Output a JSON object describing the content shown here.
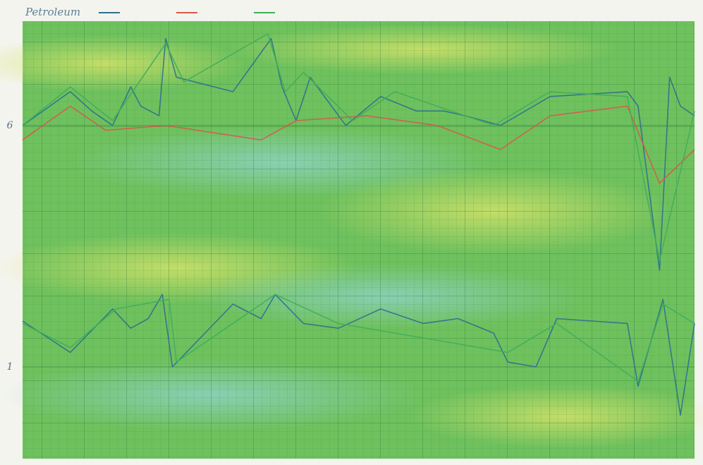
{
  "chart_data": {
    "type": "line",
    "title": "Petroleum",
    "xlim": [
      0,
      100
    ],
    "ylim": [
      -0.9,
      8.16
    ],
    "yticks": [
      1,
      6
    ],
    "grid": true,
    "series": [
      {
        "color": "#2f6f8f",
        "x": [
          0,
          7.1,
          10.3,
          13.4,
          16.1,
          17.6,
          20.3,
          21.3,
          22.9,
          31.3,
          37.0,
          38.6,
          40.7,
          42.8,
          48.1,
          53.3,
          58.6,
          62.7,
          65.9,
          71.1,
          78.5,
          90.0,
          91.6,
          94.8,
          96.3,
          97.9,
          100,
          null,
          0,
          7.1,
          13.4,
          16.1,
          18.7,
          20.8,
          22.3,
          31.3,
          35.5,
          37.6,
          41.8,
          47.0,
          53.3,
          59.6,
          64.8,
          70.1,
          72.2,
          76.4,
          79.5,
          90.0,
          91.6,
          95.3,
          97.9,
          100
        ],
        "values": [
          6.0,
          6.7,
          6.3,
          6.0,
          6.8,
          6.4,
          6.2,
          7.8,
          7.0,
          6.7,
          7.8,
          6.8,
          6.1,
          7.0,
          6.0,
          6.6,
          6.3,
          6.3,
          6.2,
          6.0,
          6.6,
          6.7,
          6.4,
          3.0,
          7.0,
          6.4,
          6.2,
          null,
          1.95,
          1.3,
          2.2,
          1.8,
          2.0,
          2.5,
          1.0,
          2.3,
          2.0,
          2.5,
          1.9,
          1.8,
          2.2,
          1.9,
          2.0,
          1.7,
          1.1,
          1.0,
          2.0,
          1.9,
          0.6,
          2.4,
          0.0,
          1.9
        ]
      },
      {
        "color": "#d9584a",
        "x": [
          0,
          7.1,
          12.4,
          21.3,
          35.5,
          40.7,
          51.2,
          61.7,
          71.1,
          78.5,
          90.0,
          94.8,
          100
        ],
        "values": [
          5.7,
          6.4,
          5.9,
          6.0,
          5.7,
          6.1,
          6.2,
          6.0,
          5.5,
          6.2,
          6.4,
          4.8,
          5.5
        ]
      },
      {
        "color": "#3fae5a",
        "x": [
          0,
          7.1,
          13.4,
          21.3,
          24.0,
          36.5,
          39.1,
          41.8,
          49.1,
          55.4,
          70.1,
          78.5,
          90.0,
          94.8,
          100,
          null,
          0,
          7.1,
          13.9,
          21.8,
          22.9,
          37.6,
          47.0,
          72.2,
          79.5,
          91.6,
          95.3,
          100
        ],
        "values": [
          6.0,
          6.8,
          6.1,
          7.7,
          6.9,
          7.9,
          6.7,
          7.1,
          6.1,
          6.7,
          6.0,
          6.7,
          6.6,
          3.2,
          6.3,
          null,
          1.9,
          1.4,
          2.2,
          2.4,
          1.1,
          2.5,
          1.9,
          1.3,
          1.9,
          0.7,
          2.3,
          1.9
        ]
      }
    ]
  }
}
